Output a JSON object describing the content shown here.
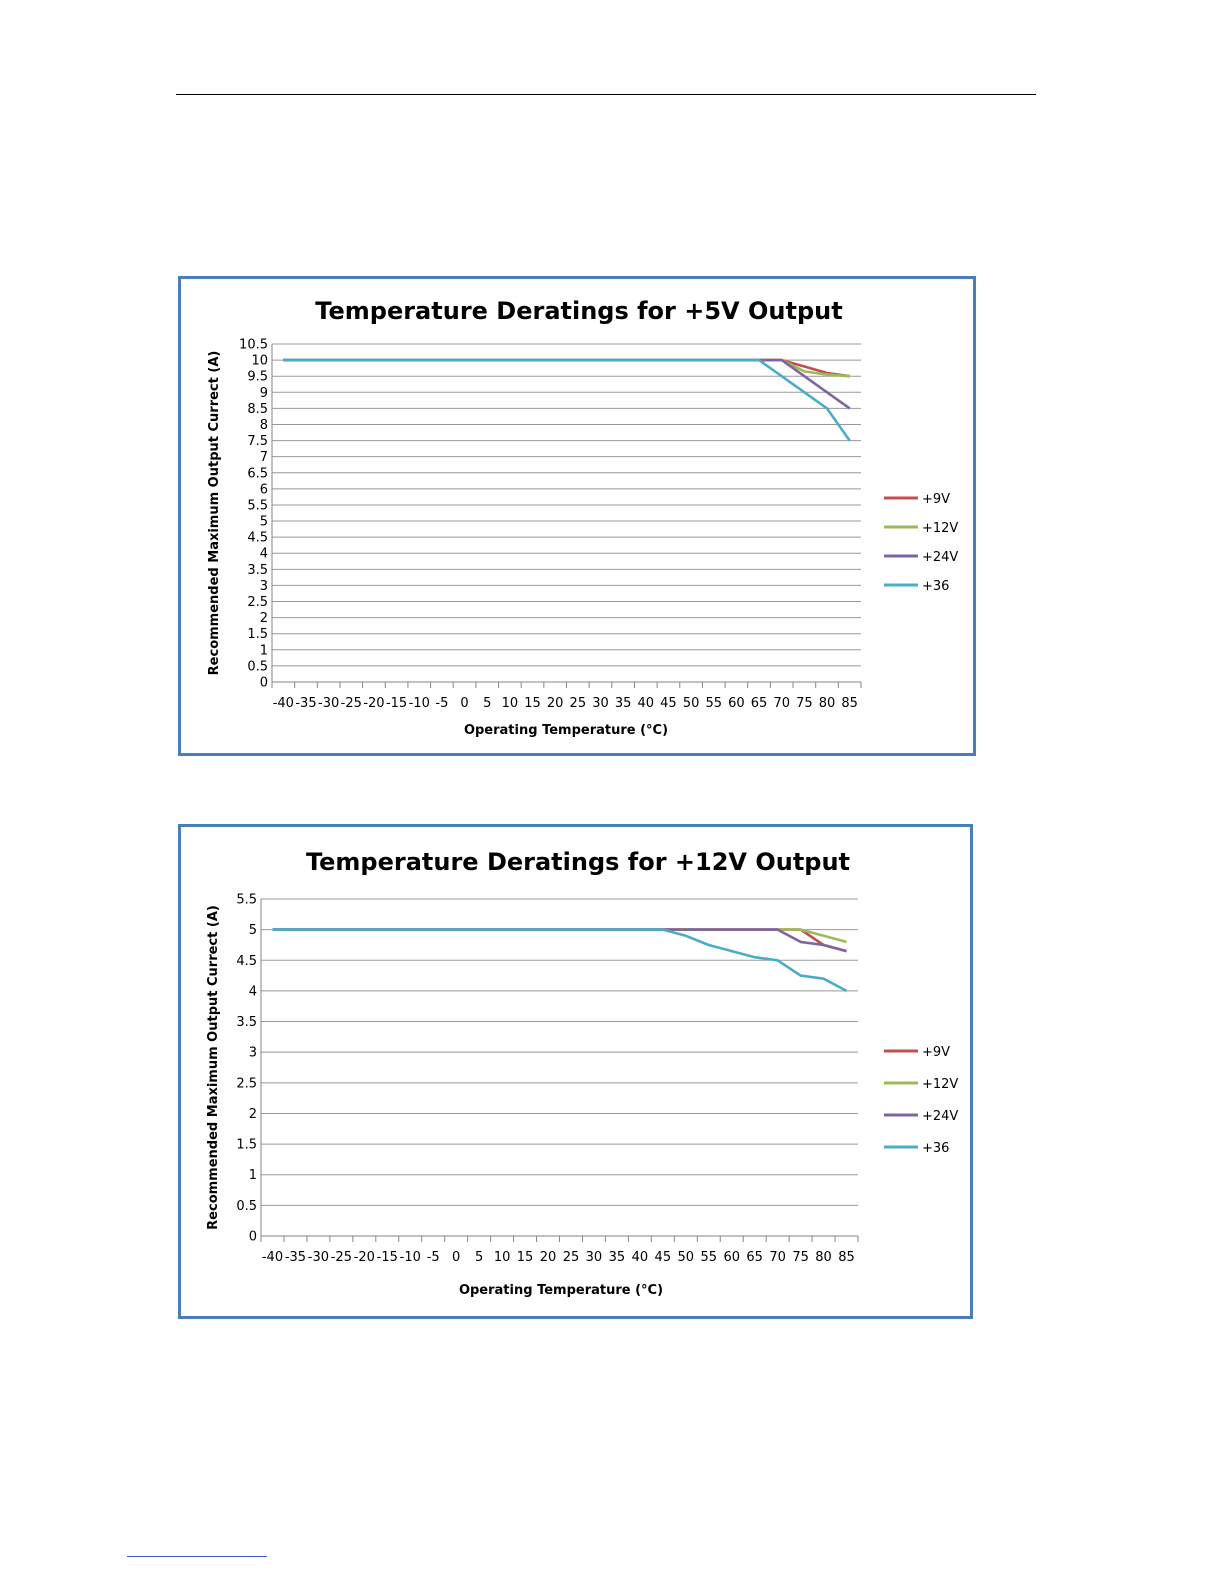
{
  "chart_data": [
    {
      "type": "line",
      "title": "Temperature Deratings for +5V Output",
      "xlabel": "Operating Temperature (°C)",
      "ylabel": "Recommended Maximum Output Currect (A)",
      "categories": [
        "-40",
        "-35",
        "-30",
        "-25",
        "-20",
        "-15",
        "-10",
        "-5",
        "0",
        "5",
        "10",
        "15",
        "20",
        "25",
        "30",
        "35",
        "40",
        "45",
        "50",
        "55",
        "60",
        "65",
        "70",
        "75",
        "80",
        "85"
      ],
      "ylim": [
        0,
        10.5
      ],
      "ytick_step": 0.5,
      "grid": true,
      "legend_position": "right",
      "series": [
        {
          "name": "+9V",
          "color": "#c0504d",
          "values": [
            10,
            10,
            10,
            10,
            10,
            10,
            10,
            10,
            10,
            10,
            10,
            10,
            10,
            10,
            10,
            10,
            10,
            10,
            10,
            10,
            10,
            10,
            10,
            9.8,
            9.6,
            9.5
          ]
        },
        {
          "name": "+12V",
          "color": "#9bbb59",
          "values": [
            10,
            10,
            10,
            10,
            10,
            10,
            10,
            10,
            10,
            10,
            10,
            10,
            10,
            10,
            10,
            10,
            10,
            10,
            10,
            10,
            10,
            10,
            10,
            9.65,
            9.55,
            9.5
          ]
        },
        {
          "name": "+24V",
          "color": "#8064a2",
          "values": [
            10,
            10,
            10,
            10,
            10,
            10,
            10,
            10,
            10,
            10,
            10,
            10,
            10,
            10,
            10,
            10,
            10,
            10,
            10,
            10,
            10,
            10,
            10,
            9.5,
            9,
            8.5
          ]
        },
        {
          "name": "+36",
          "color": "#4bacc6",
          "values": [
            10,
            10,
            10,
            10,
            10,
            10,
            10,
            10,
            10,
            10,
            10,
            10,
            10,
            10,
            10,
            10,
            10,
            10,
            10,
            10,
            10,
            10,
            9.5,
            9,
            8.5,
            7.5
          ]
        }
      ]
    },
    {
      "type": "line",
      "title": "Temperature Deratings for +12V Output",
      "xlabel": "Operating Temperature (°C)",
      "ylabel": "Recommended Maximum Output Currect (A)",
      "categories": [
        "-40",
        "-35",
        "-30",
        "-25",
        "-20",
        "-15",
        "-10",
        "-5",
        "0",
        "5",
        "10",
        "15",
        "20",
        "25",
        "30",
        "35",
        "40",
        "45",
        "50",
        "55",
        "60",
        "65",
        "70",
        "75",
        "80",
        "85"
      ],
      "ylim": [
        0,
        5.5
      ],
      "ytick_step": 0.5,
      "grid": true,
      "legend_position": "right",
      "series": [
        {
          "name": "+9V",
          "color": "#c0504d",
          "values": [
            5,
            5,
            5,
            5,
            5,
            5,
            5,
            5,
            5,
            5,
            5,
            5,
            5,
            5,
            5,
            5,
            5,
            5,
            5,
            5,
            5,
            5,
            5,
            5,
            4.75,
            4.65
          ]
        },
        {
          "name": "+12V",
          "color": "#9bbb59",
          "values": [
            5,
            5,
            5,
            5,
            5,
            5,
            5,
            5,
            5,
            5,
            5,
            5,
            5,
            5,
            5,
            5,
            5,
            5,
            5,
            5,
            5,
            5,
            5,
            5,
            4.9,
            4.8
          ]
        },
        {
          "name": "+24V",
          "color": "#8064a2",
          "values": [
            5,
            5,
            5,
            5,
            5,
            5,
            5,
            5,
            5,
            5,
            5,
            5,
            5,
            5,
            5,
            5,
            5,
            5,
            5,
            5,
            5,
            5,
            5,
            4.8,
            4.75,
            4.65
          ]
        },
        {
          "name": "+36",
          "color": "#4bacc6",
          "values": [
            5,
            5,
            5,
            5,
            5,
            5,
            5,
            5,
            5,
            5,
            5,
            5,
            5,
            5,
            5,
            5,
            5,
            5,
            4.9,
            4.75,
            4.65,
            4.55,
            4.5,
            4.25,
            4.2,
            4
          ]
        }
      ]
    }
  ]
}
